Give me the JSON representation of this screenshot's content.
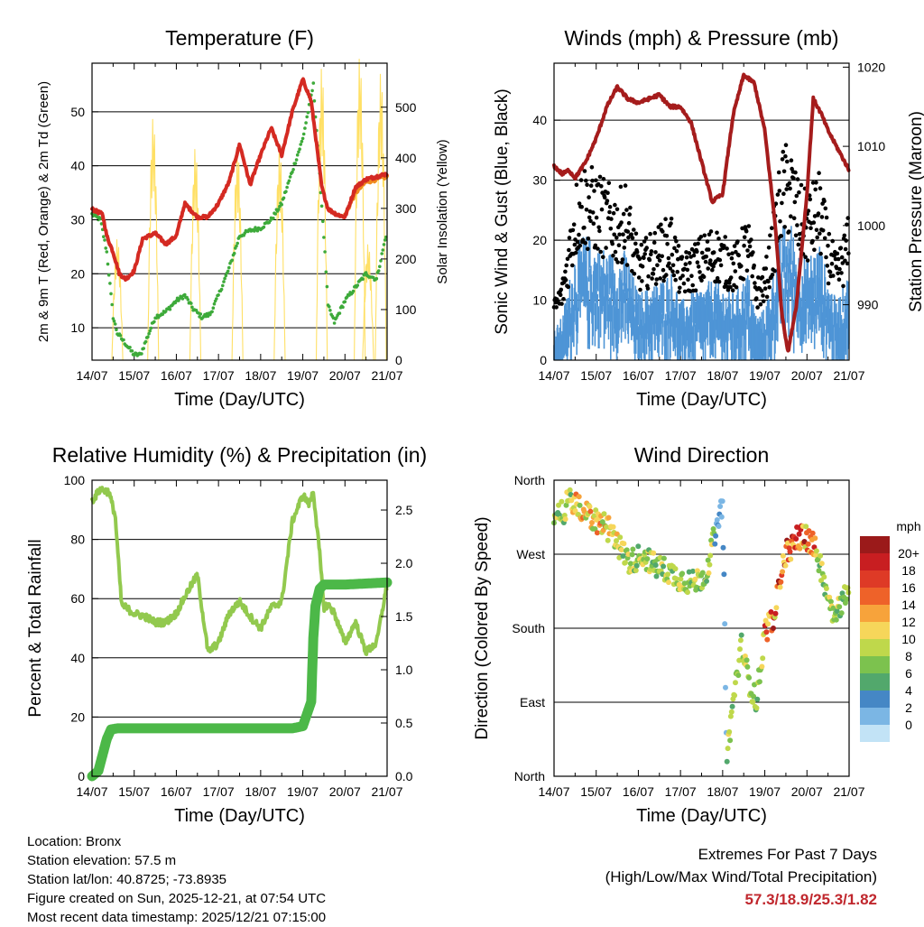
{
  "x_ticks": [
    "14/07",
    "15/07",
    "16/07",
    "17/07",
    "18/07",
    "19/07",
    "20/07",
    "21/07"
  ],
  "time_label": "Time (Day/UTC)",
  "colors": {
    "red": "#d42a22",
    "orange": "#f08a1e",
    "green": "#3daa3a",
    "yellow": "#ffe066",
    "maroon": "#a51c1c",
    "blue": "#4e95d6",
    "black": "#000000",
    "rh": "#92c94e",
    "precip": "#4cb848"
  },
  "chart_data": [
    {
      "id": "temperature",
      "type": "line",
      "title": "Temperature (F)",
      "xlabel": "Time (Day/UTC)",
      "ylabel": "2m & 9m T (Red, Orange) & 2m Td (Green)",
      "y2label": "Solar Insolation (Yellow)",
      "xlim": [
        0,
        7
      ],
      "ylim": [
        4,
        59
      ],
      "y2lim": [
        0,
        587
      ],
      "yticks": [
        10,
        20,
        30,
        40,
        50
      ],
      "y2ticks": [
        0,
        100,
        200,
        300,
        400,
        500
      ],
      "series": [
        {
          "name": "2m T",
          "color": "red",
          "x": [
            0,
            0.25,
            0.35,
            0.5,
            0.65,
            0.8,
            1.0,
            1.2,
            1.5,
            1.75,
            2.0,
            2.2,
            2.5,
            2.75,
            3.0,
            3.25,
            3.5,
            3.75,
            4.0,
            4.25,
            4.5,
            4.75,
            5.0,
            5.2,
            5.45,
            5.6,
            5.8,
            6.0,
            6.25,
            6.5,
            6.75,
            7.0
          ],
          "y": [
            32,
            31,
            27,
            24,
            20,
            19,
            20.5,
            26.5,
            27.5,
            25.5,
            27,
            33,
            30.5,
            30.5,
            33,
            37,
            44,
            36.5,
            42,
            47,
            42,
            50,
            56,
            52,
            36,
            32,
            31,
            30.5,
            36,
            37.5,
            38,
            38.5
          ]
        },
        {
          "name": "9m T",
          "color": "orange",
          "x": [
            6.0,
            6.25,
            6.5,
            6.75,
            7.0
          ],
          "y": [
            30.8,
            35,
            37,
            37.5,
            38
          ]
        },
        {
          "name": "2m Td",
          "color": "green",
          "x": [
            0,
            0.2,
            0.35,
            0.5,
            0.6,
            0.75,
            1.0,
            1.15,
            1.3,
            1.5,
            1.75,
            2.0,
            2.2,
            2.4,
            2.6,
            2.8,
            3.0,
            3.25,
            3.5,
            3.75,
            4.0,
            4.25,
            4.5,
            4.75,
            5.0,
            5.25,
            5.5,
            5.6,
            5.75,
            6.0,
            6.25,
            6.5,
            6.75,
            7.0
          ],
          "y": [
            31,
            30,
            24,
            12,
            9,
            7.5,
            5,
            5,
            8,
            12,
            13,
            15,
            16,
            13.5,
            12,
            12.5,
            16,
            21,
            27,
            28,
            28.5,
            30,
            33,
            39,
            45,
            55,
            27,
            14,
            11,
            15,
            17.5,
            20,
            19,
            28
          ]
        },
        {
          "name": "Solar Insolation",
          "color": "yellow",
          "axis": "y2",
          "peaks": [
            [
              0.6,
              240
            ],
            [
              1.45,
              480
            ],
            [
              2.45,
              420
            ],
            [
              3.45,
              420
            ],
            [
              4.45,
              420
            ],
            [
              5.45,
              580
            ],
            [
              6.35,
              600
            ],
            [
              6.55,
              230
            ],
            [
              6.85,
              570
            ]
          ]
        }
      ]
    },
    {
      "id": "winds",
      "type": "scatter",
      "title": "Winds (mph) & Pressure (mb)",
      "xlabel": "Time (Day/UTC)",
      "ylabel": "Sonic Wind & Gust (Blue, Black)",
      "y2label": "Station Pressure (Maroon)",
      "xlim": [
        0,
        7
      ],
      "ylim": [
        0,
        49.5
      ],
      "y2lim": [
        983,
        1020.5
      ],
      "yticks": [
        0,
        10,
        20,
        30,
        40
      ],
      "y2ticks": [
        990,
        1000,
        1010,
        1020
      ],
      "series": [
        {
          "name": "Sonic Wind",
          "color": "blue"
        },
        {
          "name": "Gust",
          "color": "black"
        },
        {
          "name": "Station Pressure",
          "color": "maroon",
          "axis": "y2",
          "x": [
            0,
            0.2,
            0.35,
            0.5,
            0.75,
            1.0,
            1.25,
            1.5,
            1.75,
            2.0,
            2.25,
            2.5,
            2.75,
            3.0,
            3.25,
            3.5,
            3.75,
            4.0,
            4.25,
            4.5,
            4.75,
            5.0,
            5.25,
            5.4,
            5.55,
            5.75,
            6.0,
            6.15,
            6.35,
            6.5,
            6.75,
            7.0
          ],
          "y": [
            1007.5,
            1006.5,
            1007,
            1006,
            1008,
            1011,
            1015,
            1017.5,
            1016,
            1015.5,
            1016,
            1016.5,
            1015,
            1015,
            1013,
            1008,
            1003,
            1004,
            1014,
            1019,
            1018,
            1012,
            1000,
            989,
            984,
            990,
            1004,
            1016,
            1014,
            1012,
            1009.5,
            1007
          ]
        }
      ]
    },
    {
      "id": "humidity",
      "type": "line",
      "title": "Relative Humidity (%) & Precipitation (in)",
      "xlabel": "Time (Day/UTC)",
      "ylabel": "Percent & Total Rainfall",
      "xlim": [
        0,
        7
      ],
      "ylim": [
        0,
        100
      ],
      "y2lim": [
        0,
        2.78
      ],
      "yticks": [
        0,
        20,
        40,
        60,
        80,
        100
      ],
      "y2ticks": [
        "0.0",
        "0.5",
        "1.0",
        "1.5",
        "2.0",
        "2.5"
      ],
      "series": [
        {
          "name": "Relative Humidity",
          "color": "rh",
          "x": [
            0,
            0.2,
            0.4,
            0.55,
            0.7,
            1.0,
            1.25,
            1.5,
            1.75,
            2.0,
            2.25,
            2.5,
            2.75,
            3.0,
            3.25,
            3.5,
            3.75,
            4.0,
            4.25,
            4.5,
            4.75,
            5.0,
            5.15,
            5.25,
            5.4,
            5.5,
            5.6,
            5.75,
            6.0,
            6.25,
            6.5,
            6.75,
            7.0
          ],
          "y": [
            93,
            97,
            96,
            88,
            58,
            55,
            54,
            52,
            52,
            55,
            62,
            68,
            42,
            45,
            55,
            59,
            54,
            50,
            57,
            59,
            86,
            95,
            92,
            96,
            75,
            57,
            58,
            55,
            45,
            52,
            42,
            45,
            65
          ]
        },
        {
          "name": "Total Precipitation",
          "color": "precip",
          "axis": "y2",
          "x": [
            0,
            0.15,
            0.35,
            0.45,
            0.6,
            1.0,
            2.0,
            3.0,
            4.0,
            4.75,
            5.0,
            5.2,
            5.25,
            5.3,
            5.4,
            5.5,
            5.6,
            6.0,
            7.0
          ],
          "y": [
            0,
            0.05,
            0.35,
            0.44,
            0.45,
            0.45,
            0.45,
            0.45,
            0.45,
            0.45,
            0.47,
            0.7,
            1.3,
            1.6,
            1.76,
            1.8,
            1.8,
            1.8,
            1.82
          ]
        }
      ]
    },
    {
      "id": "direction",
      "type": "scatter",
      "title": "Wind Direction",
      "xlabel": "Time (Day/UTC)",
      "ylabel": "Direction (Colored By Speed)",
      "xlim": [
        0,
        7
      ],
      "ylim": [
        0,
        360
      ],
      "ytick_values": [
        0,
        90,
        180,
        270,
        360
      ],
      "ytick_labels": [
        "North",
        "East",
        "South",
        "West",
        "North"
      ],
      "dir_track": {
        "x": [
          0,
          0.2,
          0.35,
          0.6,
          0.9,
          1.3,
          1.6,
          1.8,
          2.1,
          2.4,
          2.7,
          3.0,
          3.3,
          3.6,
          3.75,
          3.85,
          4.0,
          4.1,
          4.2,
          4.3,
          4.45,
          4.6,
          4.8,
          5.0,
          5.1,
          5.2,
          5.35,
          5.5,
          5.7,
          5.9,
          6.1,
          6.25,
          6.4,
          6.5,
          6.6,
          6.8,
          7.0
        ],
        "y": [
          310,
          320,
          335,
          325,
          315,
          300,
          275,
          260,
          270,
          255,
          250,
          240,
          235,
          245,
          280,
          300,
          330,
          20,
          70,
          110,
          160,
          120,
          90,
          175,
          185,
          185,
          240,
          270,
          285,
          295,
          285,
          270,
          240,
          220,
          200,
          210,
          225
        ]
      },
      "colorbar": {
        "title": "mph",
        "labels": [
          "20+",
          "18",
          "16",
          "14",
          "12",
          "10",
          "8",
          "6",
          "4",
          "2",
          "0"
        ],
        "colors": [
          "#9b1a1a",
          "#c81e21",
          "#de3a26",
          "#ee6229",
          "#f7a33b",
          "#f6d65a",
          "#bfd84b",
          "#7cc24e",
          "#52a86c",
          "#4587c5",
          "#7bb6e4",
          "#c2e3f6"
        ]
      }
    }
  ],
  "info": {
    "location": "Location: Bronx",
    "elevation": "Station elevation: 57.5 m",
    "latlon": "Station lat/lon: 40.8725; -73.8935",
    "created": "Figure created on Sun, 2025-12-21, at 07:54 UTC",
    "recent": "Most recent data timestamp: 2025/12/21 07:15:00"
  },
  "extremes": {
    "line1": "Extremes For Past 7 Days",
    "line2": "(High/Low/Max Wind/Total Precipitation)",
    "values": "57.3/18.9/25.3/1.82"
  }
}
